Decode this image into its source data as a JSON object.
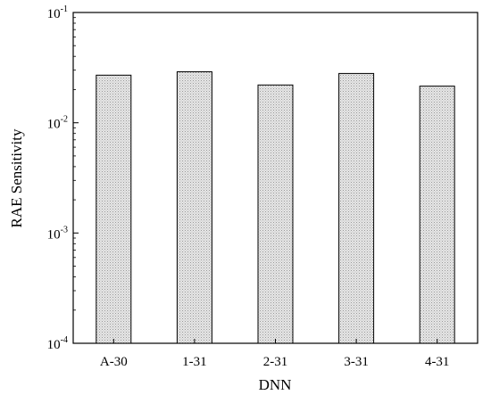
{
  "chart_data": {
    "type": "bar",
    "title": "",
    "xlabel": "DNN",
    "ylabel": "RAE Sensitivity",
    "categories": [
      "A-30",
      "1-31",
      "2-31",
      "3-31",
      "4-31"
    ],
    "values": [
      0.027,
      0.029,
      0.022,
      0.028,
      0.0215
    ],
    "yscale": "log",
    "ylim": [
      0.0001,
      0.1
    ],
    "ytick_labels": [
      {
        "base": "10",
        "exp": "-1",
        "value": 0.1
      },
      {
        "base": "10",
        "exp": "-2",
        "value": 0.01
      },
      {
        "base": "10",
        "exp": "-3",
        "value": 0.001
      },
      {
        "base": "10",
        "exp": "-4",
        "value": 0.0001
      }
    ],
    "grid": false,
    "legend": "none",
    "bar_fill": "#d9d9d9",
    "bar_stroke": "#000000"
  }
}
